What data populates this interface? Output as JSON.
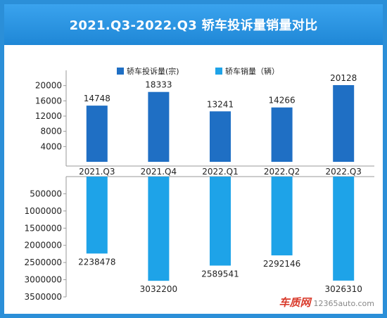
{
  "chart_data": {
    "type": "bar",
    "title": "2021.Q3-2022.Q3 轿车投诉量销量对比",
    "categories": [
      "2021.Q3",
      "2021.Q4",
      "2022.Q1",
      "2022.Q2",
      "2022.Q3"
    ],
    "series": [
      {
        "name": "轿车投诉量(宗)",
        "values": [
          14748,
          18333,
          13241,
          14266,
          20128
        ],
        "color": "#1f6fc4",
        "direction": "up"
      },
      {
        "name": "轿车销量（辆）",
        "values": [
          2238478,
          3032200,
          2589541,
          2292146,
          3026310
        ],
        "color": "#1ea3e8",
        "direction": "down"
      }
    ],
    "upper_axis": {
      "ticks": [
        4000,
        8000,
        12000,
        16000,
        20000
      ],
      "labels": [
        "4000",
        "8000",
        "12000",
        "16000",
        "20000"
      ],
      "max": 24000
    },
    "lower_axis": {
      "ticks": [
        500000,
        1000000,
        1500000,
        2000000,
        2500000,
        3000000,
        3500000
      ],
      "labels": [
        "500000",
        "1000000",
        "1500000",
        "2000000",
        "2500000",
        "3000000",
        "3500000"
      ],
      "max": 3500000
    },
    "legend_position": "top",
    "grid": false
  },
  "watermark": {
    "brand": "车质网",
    "url": "12365auto.com"
  }
}
